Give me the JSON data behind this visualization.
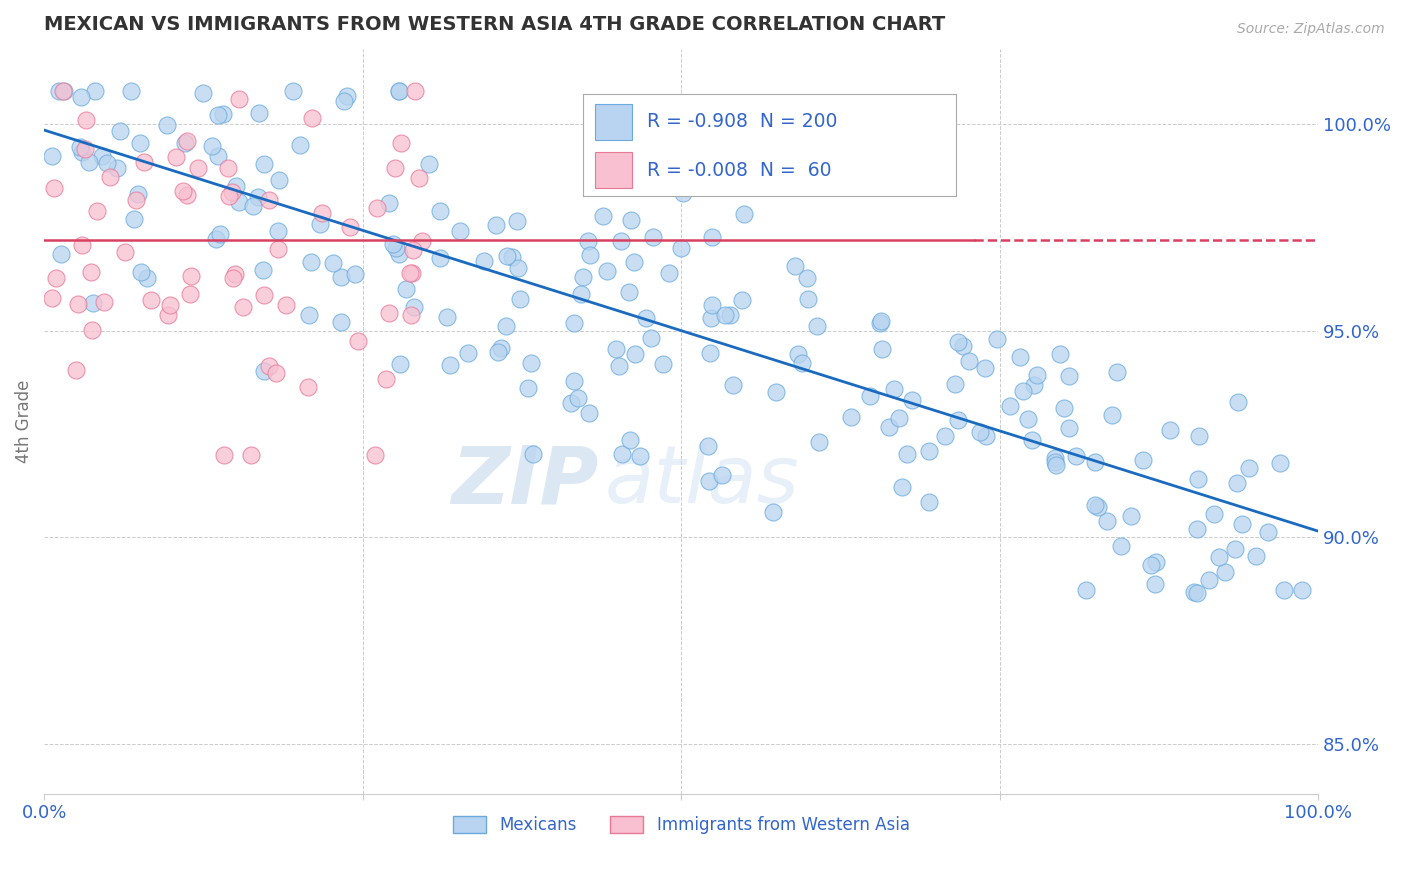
{
  "title": "MEXICAN VS IMMIGRANTS FROM WESTERN ASIA 4TH GRADE CORRELATION CHART",
  "source": "Source: ZipAtlas.com",
  "ylabel": "4th Grade",
  "ytick_labels": [
    "85.0%",
    "90.0%",
    "95.0%",
    "100.0%"
  ],
  "ytick_values": [
    0.85,
    0.9,
    0.95,
    1.0
  ],
  "xmin": 0.0,
  "xmax": 1.0,
  "ymin": 0.838,
  "ymax": 1.018,
  "blue_R": -0.908,
  "blue_N": 200,
  "pink_R": -0.008,
  "pink_N": 60,
  "blue_color": "#b8d4f0",
  "blue_edge_color": "#6aaade",
  "pink_color": "#f8c0d0",
  "pink_edge_color": "#e87898",
  "blue_line_color": "#1a6bbf",
  "pink_line_color": "#d84060",
  "legend_label_blue": "Mexicans",
  "legend_label_pink": "Immigrants from Western Asia",
  "grid_color": "#cccccc",
  "title_color": "#333333",
  "axis_label_color": "#777777",
  "legend_text_color": "#3366cc",
  "tick_label_color": "#3366cc",
  "blue_trend_y0": 0.9985,
  "blue_trend_y1": 0.9015,
  "pink_trend_y": 0.972
}
